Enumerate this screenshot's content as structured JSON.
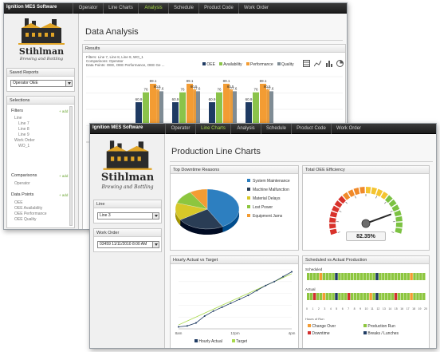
{
  "back_window": {
    "app_title": "Ignition MES Software",
    "tabs": [
      "Operator",
      "Line Charts",
      "Analysis",
      "Schedule",
      "Product Code",
      "Work Order"
    ],
    "active_tab": "Analysis",
    "brand": "Stihlman",
    "brand_tag": "Brewing and Bottling",
    "saved_reports_label": "Saved Reports",
    "saved_reports_value": "Operator OEE",
    "selections_label": "Selections",
    "filters_label": "Filters",
    "add_label": "+ add",
    "filter_tree": [
      "Line",
      "Line 7",
      "Line 8",
      "Line 9",
      "Work Order",
      "WO_1"
    ],
    "comparisons_label": "Comparisons",
    "comparison_items": [
      "Operator"
    ],
    "data_points_label": "Data Points",
    "data_point_items": [
      "OEE",
      "OEE Availability",
      "OEE Performance",
      "OEE Quality"
    ],
    "page_title": "Data Analysis",
    "results_label": "Results",
    "filters_text": "Filters: Line 7, Line 8, Line 9, WO_1",
    "comparisons_text": "Comparisons: Operator",
    "data_points_text": "Data Points: OEE, OEE Performance, OEE Ge ...",
    "colors": {
      "oee": "#1f3b63",
      "availability": "#8bc34a",
      "performance": "#f39c33",
      "quality": "#7f8c95"
    }
  },
  "chart_data": {
    "type": "bar",
    "title": "",
    "series": [
      {
        "name": "OEE",
        "values": [
          60.9,
          60.9,
          60.9,
          60.9
        ]
      },
      {
        "name": "Availability",
        "values": [
          76,
          76,
          76,
          76
        ]
      },
      {
        "name": "Performance",
        "values": [
          80.5,
          80.5,
          80.5,
          80.5
        ]
      },
      {
        "name": "Quality",
        "values": [
          77.6,
          77.6,
          77.6,
          77.6
        ]
      }
    ],
    "data_labels": [
      [
        "60.9",
        "76",
        "80.5",
        "77.6"
      ]
    ],
    "group_extra_labels": [
      "89.1",
      "89.1",
      "89.1",
      "89.1"
    ],
    "ylim": [
      0,
      100
    ],
    "legend": "top-right"
  },
  "front_window": {
    "app_title": "Ignition MES Software",
    "tabs": [
      "Operator",
      "Line Charts",
      "Analysis",
      "Schedule",
      "Product Code",
      "Work Order"
    ],
    "active_tab": "Line Charts",
    "brand": "Stihlman",
    "brand_tag": "Brewing and Bottling",
    "line_label": "Line",
    "line_value": "Line 3",
    "work_order_label": "Work Order",
    "work_order_value": "03459 11/11/2010 8:00 AM",
    "page_title": "Production Line Charts",
    "downtime": {
      "title": "Top Downtime Reasons",
      "items": [
        {
          "label": "System Maintenance",
          "value": 42,
          "color": "#2d7fc0"
        },
        {
          "label": "Machine Malfunction",
          "value": 24,
          "color": "#2a3d55"
        },
        {
          "label": "Material Delays",
          "value": 14,
          "color": "#d7c829"
        },
        {
          "label": "Lost Power",
          "value": 11,
          "color": "#8dc63f"
        },
        {
          "label": "Equipment Jams",
          "value": 9,
          "color": "#f39c33"
        }
      ]
    },
    "oee": {
      "title": "Total OEE Efficiency",
      "value": 82.35,
      "value_text": "82.35%"
    },
    "hourly": {
      "title": "Hourly Actual vs Target",
      "x_ticks": [
        "8am",
        "12pm",
        "4pm"
      ],
      "actual": [
        2,
        3,
        6,
        13,
        18,
        22,
        26,
        30,
        34,
        39,
        44,
        48,
        53,
        58
      ],
      "target": [
        4,
        8,
        12,
        16,
        20,
        24,
        28,
        32,
        36,
        40,
        44,
        48,
        52,
        56
      ],
      "legend_actual": "Hourly Actual",
      "legend_target": "Target",
      "color_actual": "#1f3b63",
      "color_target": "#a8d94a"
    },
    "schedule": {
      "title": "Scheduled vs Actual Production",
      "scheduled_label": "Scheduled",
      "actual_label": "Actual",
      "axis_label": "Hours of Run",
      "x_ticks": [
        "0",
        "1",
        "2",
        "3",
        "4",
        "5",
        "6",
        "7",
        "8",
        "9",
        "10",
        "11",
        "12",
        "13",
        "14",
        "15",
        "16",
        "17",
        "18",
        "19",
        "20"
      ],
      "scheduled_pattern": "ppppoppppbppppppppppppbppppppppppopppp",
      "actual_pattern": "ppdppopppbpppdppppppopbpppppdppppopppp",
      "legend": [
        {
          "label": "Change Over",
          "color": "#f39c33"
        },
        {
          "label": "Production Run",
          "color": "#8dc63f"
        },
        {
          "label": "Downtime",
          "color": "#d32f2f"
        },
        {
          "label": "Breaks / Lunches",
          "color": "#1f3b63"
        }
      ]
    }
  }
}
